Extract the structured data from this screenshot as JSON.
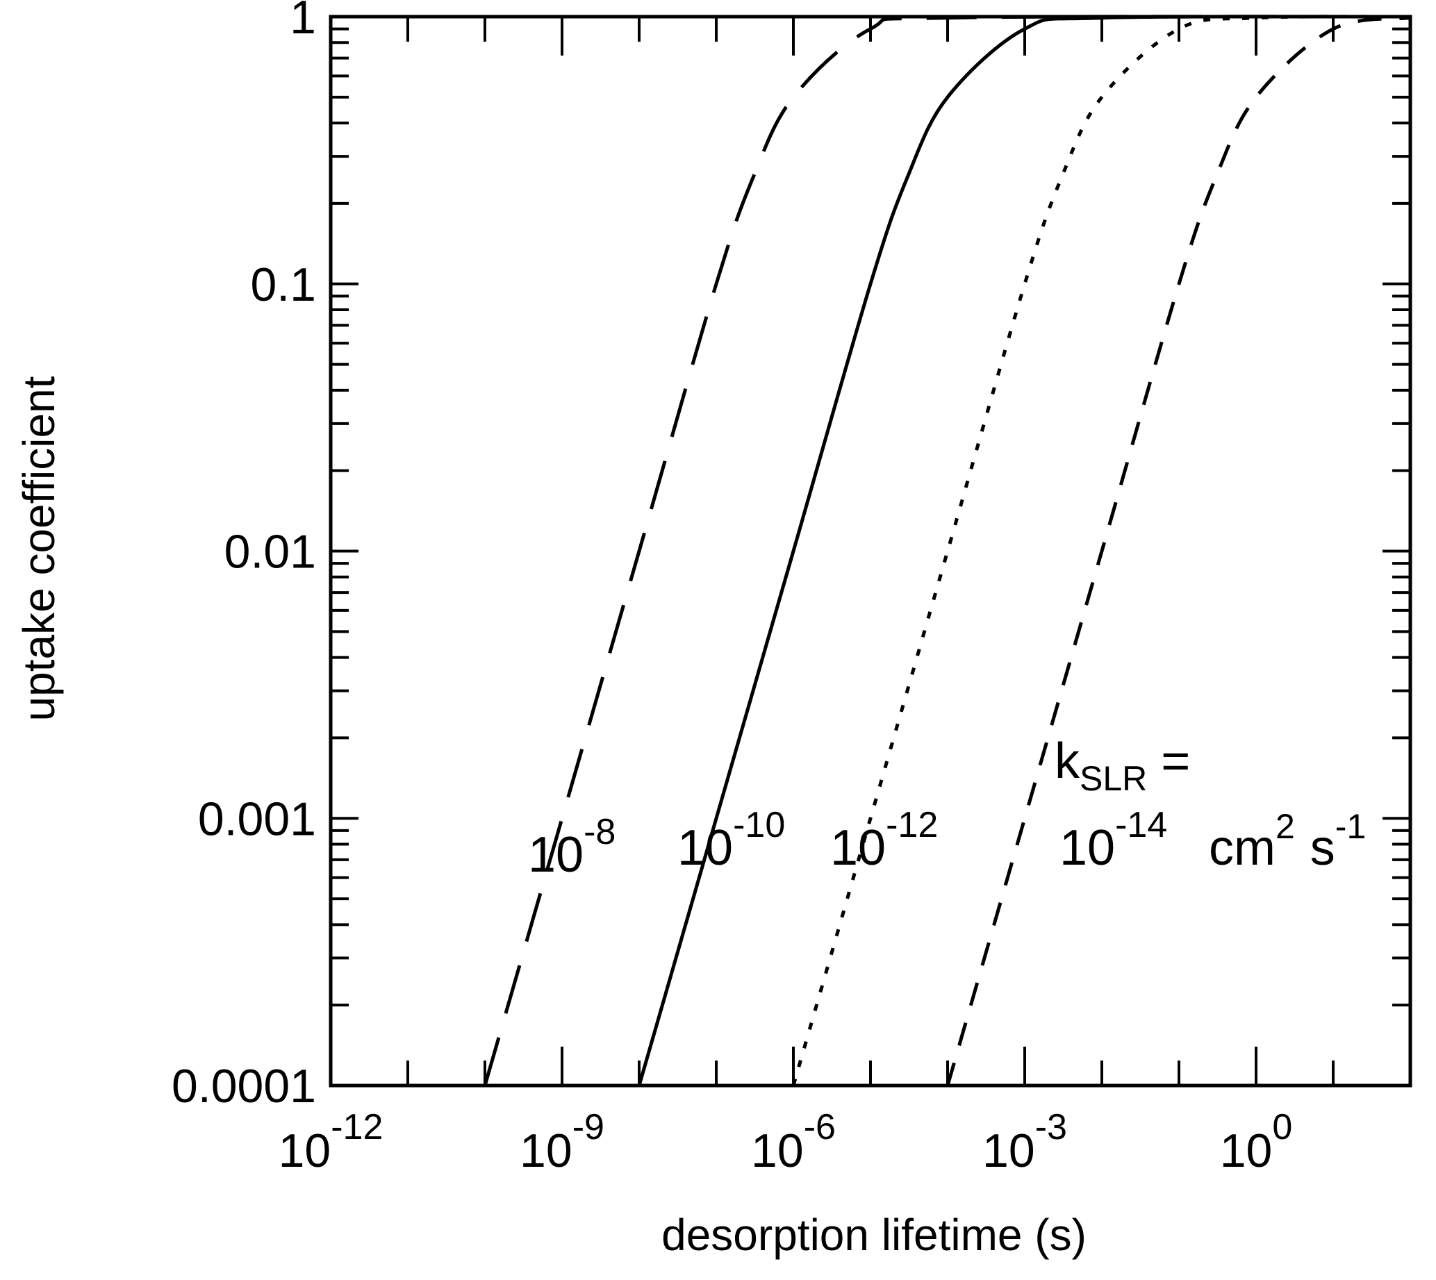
{
  "chart_data": {
    "type": "line",
    "xlabel": "desorption lifetime (s)",
    "ylabel": "uptake coefficient",
    "x_scale": "log",
    "y_scale": "log",
    "xlim": [
      1e-12,
      100.0
    ],
    "ylim": [
      0.0001,
      1
    ],
    "x_tick_labels": [
      {
        "value": 1e-12,
        "base": "10",
        "exp": "-12"
      },
      {
        "value": 1e-09,
        "base": "10",
        "exp": "-9"
      },
      {
        "value": 1e-06,
        "base": "10",
        "exp": "-6"
      },
      {
        "value": 0.001,
        "base": "10",
        "exp": "-3"
      },
      {
        "value": 1,
        "base": "10",
        "exp": "0"
      }
    ],
    "y_tick_labels": [
      {
        "value": 1,
        "label": "1"
      },
      {
        "value": 0.1,
        "label": "0.1"
      },
      {
        "value": 0.01,
        "label": "0.01"
      },
      {
        "value": 0.001,
        "label": "0.001"
      },
      {
        "value": 0.0001,
        "label": "0.0001"
      }
    ],
    "grid": false,
    "legend": "none",
    "series": [
      {
        "label_base": "10",
        "label_exp": "-8",
        "line_style": "long-dash",
        "points": [
          [
            1e-10,
            0.0001
          ],
          [
            1e-09,
            0.001
          ],
          [
            1e-08,
            0.01
          ],
          [
            1e-07,
            0.1
          ],
          [
            3e-07,
            0.25
          ],
          [
            1e-06,
            0.5
          ],
          [
            1e-05,
            0.9
          ],
          [
            0.0001,
            0.99
          ],
          [
            100.0,
            1.0
          ]
        ]
      },
      {
        "label_base": "10",
        "label_exp": "-10",
        "line_style": "solid",
        "points": [
          [
            1e-08,
            0.0001
          ],
          [
            1e-07,
            0.001
          ],
          [
            1e-06,
            0.01
          ],
          [
            1e-05,
            0.1
          ],
          [
            3e-05,
            0.25
          ],
          [
            0.0001,
            0.5
          ],
          [
            0.001,
            0.9
          ],
          [
            0.01,
            0.99
          ],
          [
            100.0,
            1.0
          ]
        ]
      },
      {
        "label_base": "10",
        "label_exp": "-12",
        "line_style": "dotted",
        "points": [
          [
            1e-06,
            0.0001
          ],
          [
            1e-05,
            0.001
          ],
          [
            0.0001,
            0.01
          ],
          [
            0.001,
            0.1
          ],
          [
            0.003,
            0.25
          ],
          [
            0.01,
            0.5
          ],
          [
            0.1,
            0.9
          ],
          [
            1,
            0.99
          ],
          [
            100.0,
            1.0
          ]
        ]
      },
      {
        "label_base": "10",
        "label_exp": "-14",
        "line_style": "short-dash",
        "points": [
          [
            0.0001,
            0.0001
          ],
          [
            0.001,
            0.001
          ],
          [
            0.01,
            0.01
          ],
          [
            0.1,
            0.1
          ],
          [
            0.3,
            0.25
          ],
          [
            1,
            0.5
          ],
          [
            10,
            0.9
          ],
          [
            100.0,
            0.99
          ]
        ]
      }
    ],
    "annotation": {
      "k_symbol": "k",
      "k_subscript": "SLR",
      "equals": "=",
      "units": {
        "cm": "cm",
        "cm_exp": "2",
        "s": "s",
        "s_exp": "-1"
      }
    }
  }
}
